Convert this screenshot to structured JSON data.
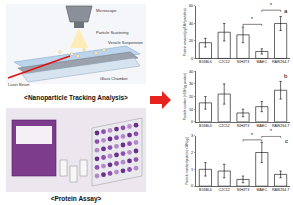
{
  "diagram": {
    "nta": {
      "title": "<Nanoparticle Tracking Analysis>",
      "labels": [
        "Microscope",
        "Particle Scattering",
        "Vesicle Suspension",
        "Laser Beam",
        "Glass Chamber"
      ]
    },
    "protein_assay": {
      "title": "<Protein Assay>"
    }
  },
  "chart_data": [
    {
      "type": "bar",
      "title": "a",
      "categories": [
        "B16BL6",
        "C2C12",
        "NIH3T3",
        "MAEC",
        "RAW264.7"
      ],
      "values": [
        18,
        30,
        27,
        8,
        40
      ],
      "errors": [
        5,
        10,
        9,
        3,
        8
      ],
      "color": "#ffffff",
      "ylabel": "Protein amount (μg/10¹⁰ particles)",
      "ylim": [
        0,
        60
      ],
      "yticks": [
        0,
        20,
        40,
        60
      ],
      "significance": [
        {
          "pair": [
            "NIH3T3",
            "MAEC"
          ],
          "label": "*"
        },
        {
          "pair": [
            "MAEC",
            "RAW264.7"
          ],
          "label": "*"
        }
      ]
    },
    {
      "type": "bar",
      "title": "b",
      "categories": [
        "B16BL6",
        "C2C12",
        "NIH3T3",
        "MAEC",
        "RAW264.7"
      ],
      "values": [
        15,
        22,
        7,
        12,
        25
      ],
      "errors": [
        5,
        8,
        3,
        4,
        7
      ],
      "color": "#ffffff",
      "ylabel": "Particle number (×10⁸/μg protein)",
      "ylim": [
        0,
        40
      ],
      "yticks": [
        0,
        10,
        20,
        30,
        40
      ],
      "significance": []
    },
    {
      "type": "bar",
      "title": "c",
      "categories": [
        "B16BL6",
        "C2C12",
        "NIH3T3",
        "MAEC",
        "RAW264.7"
      ],
      "values": [
        1.0,
        0.9,
        0.4,
        2.0,
        0.7
      ],
      "errors": [
        0.4,
        0.4,
        0.2,
        0.6,
        0.2
      ],
      "color": "#ffffff",
      "ylabel": "Particle number/protein (×10⁸/μg)",
      "ylim": [
        0,
        3
      ],
      "yticks": [
        0,
        1,
        2,
        3
      ],
      "significance": [
        {
          "pair": [
            "NIH3T3",
            "MAEC"
          ],
          "label": "*"
        },
        {
          "pair": [
            "MAEC",
            "RAW264.7"
          ],
          "label": "*"
        }
      ]
    }
  ]
}
